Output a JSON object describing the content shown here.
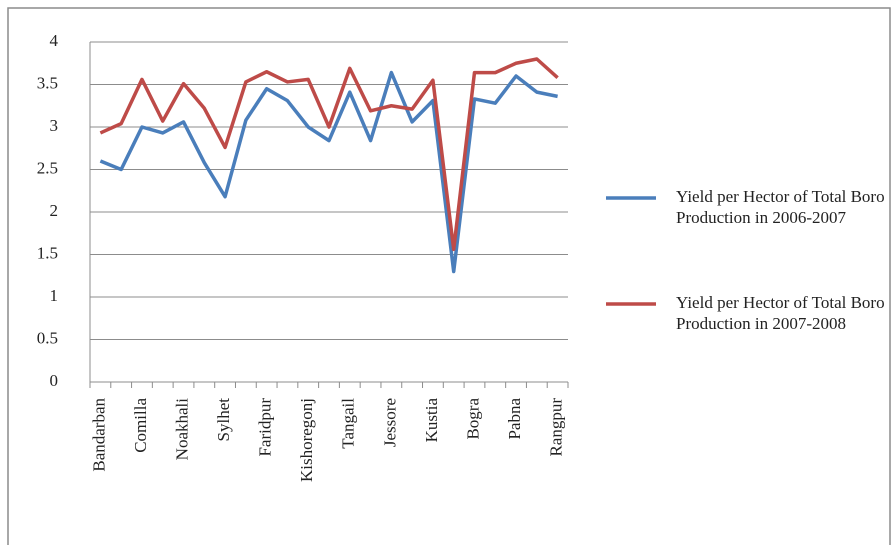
{
  "chart_data": {
    "type": "line",
    "categories": [
      "Bandarban",
      null,
      "Comilla",
      null,
      "Noakhali",
      null,
      "Sylhet",
      null,
      "Faridpur",
      null,
      "Kishoregonj",
      null,
      "Tangail",
      null,
      "Jessore",
      null,
      "Kustia",
      null,
      "Bogra",
      null,
      "Pabna",
      null,
      "Rangpur"
    ],
    "series": [
      {
        "name": "Yield per Hector of Total Boro Production in 2006-2007",
        "color": "#4a7ebb",
        "values": [
          2.6,
          2.5,
          3.0,
          2.93,
          3.06,
          2.58,
          2.18,
          3.08,
          3.45,
          3.31,
          3.0,
          2.84,
          3.41,
          2.84,
          3.64,
          3.06,
          3.31,
          1.3,
          3.33,
          3.28,
          3.6,
          3.41,
          3.36
        ]
      },
      {
        "name": "Yield per Hector of Total Boro Production in 2007-2008",
        "color": "#be4b48",
        "values": [
          2.93,
          3.04,
          3.56,
          3.07,
          3.51,
          3.22,
          2.76,
          3.53,
          3.65,
          3.53,
          3.56,
          3.0,
          3.69,
          3.19,
          3.25,
          3.21,
          3.55,
          1.56,
          3.64,
          3.64,
          3.75,
          3.8,
          3.58
        ]
      }
    ],
    "ylim": [
      0,
      4
    ],
    "yticks": [
      0,
      0.5,
      1,
      1.5,
      2,
      2.5,
      3,
      3.5,
      4
    ],
    "grid": true,
    "legend": "right"
  }
}
